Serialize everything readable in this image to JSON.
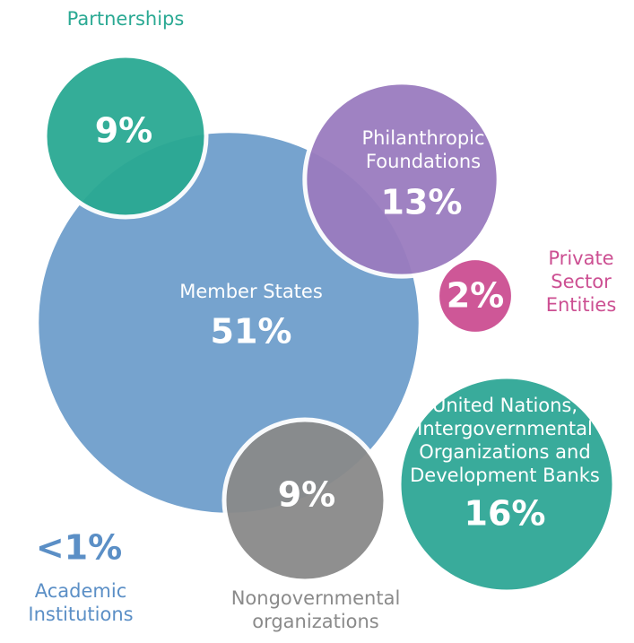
{
  "chart_data": {
    "type": "bubble",
    "categories": [
      "Member States",
      "Philanthropic\nFoundations",
      "United Nations,\nIntergovernmental\nOrganizations and\nDevelopment Banks",
      "Partnerships",
      "Nongovernmental\norganizations",
      "Private\nSector\nEntities",
      "Academic\nInstitutions"
    ],
    "values": [
      51,
      13,
      16,
      9,
      9,
      2,
      0.5
    ],
    "value_labels": [
      "51%",
      "13%",
      "16%",
      "9%",
      "9%",
      "2%",
      "<1%"
    ],
    "colors": [
      "#6f9fcc",
      "#9a7cbf",
      "#2fa796",
      "#2aa993",
      "#8a8a8a",
      "#cc4f92",
      "#5b8fc6"
    ]
  }
}
